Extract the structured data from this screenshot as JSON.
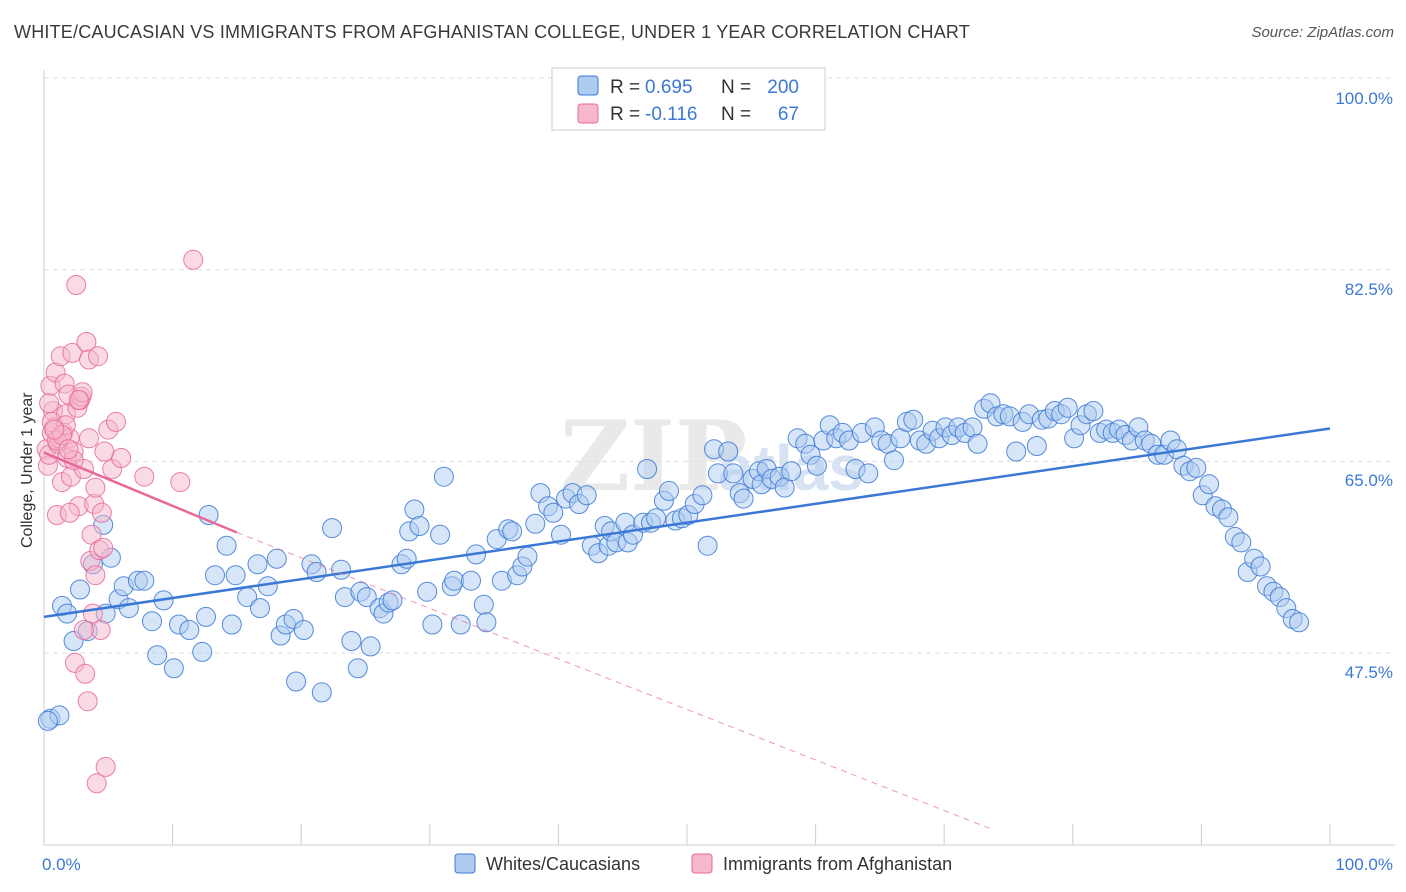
{
  "title": "WHITE/CAUCASIAN VS IMMIGRANTS FROM AFGHANISTAN COLLEGE, UNDER 1 YEAR CORRELATION CHART",
  "source": "Source: ZipAtlas.com",
  "watermark": {
    "part1": "ZIP",
    "part2": "atlas"
  },
  "colors": {
    "blue": "#3b78d6",
    "blue_fill": "#aecbf0",
    "pink": "#e8689a",
    "pink_fill": "#f6b8cc",
    "grid": "#dddddd"
  },
  "stats_legend": {
    "rows": [
      {
        "series": "Whites/Caucasians",
        "r_label": "R =",
        "r_value": "0.695",
        "n_label": "N =",
        "n_value": "200",
        "color": "#3b78d6"
      },
      {
        "series": "Immigrants from Afghanistan",
        "r_label": "R =",
        "r_value": "-0.116",
        "n_label": "N =",
        "n_value": "67",
        "color": "#e8689a"
      }
    ]
  },
  "chart_data": {
    "type": "scatter",
    "title": "WHITE/CAUCASIAN VS IMMIGRANTS FROM AFGHANISTAN COLLEGE, UNDER 1 YEAR CORRELATION CHART",
    "xlabel": "",
    "ylabel": "College, Under 1 year",
    "xlim": [
      0,
      100
    ],
    "ylim": [
      31.5,
      102
    ],
    "y_ticks": [
      47.5,
      65.0,
      82.5,
      100.0
    ],
    "y_tick_labels": [
      "47.5%",
      "65.0%",
      "82.5%",
      "100.0%"
    ],
    "x_tick_labels": [
      "0.0%",
      "100.0%"
    ],
    "grid": true,
    "legend": "bottom-center",
    "series": [
      {
        "name": "Whites/Caucasians",
        "color": "#3b78d6",
        "trend": {
          "x": [
            0,
            100
          ],
          "y": [
            50.8,
            68.0
          ],
          "style": "solid"
        },
        "points": [
          [
            0.5,
            41.5
          ],
          [
            1.2,
            41.8
          ],
          [
            1.4,
            51.8
          ],
          [
            1.8,
            51.1
          ],
          [
            2.3,
            48.6
          ],
          [
            2.8,
            53.3
          ],
          [
            3.4,
            49.5
          ],
          [
            3.8,
            55.6
          ],
          [
            4.6,
            59.2
          ],
          [
            4.8,
            51.1
          ],
          [
            5.2,
            56.2
          ],
          [
            5.8,
            52.4
          ],
          [
            6.2,
            53.6
          ],
          [
            6.6,
            51.6
          ],
          [
            7.3,
            54.1
          ],
          [
            7.8,
            54.1
          ],
          [
            8.4,
            50.4
          ],
          [
            8.8,
            47.3
          ],
          [
            9.3,
            52.3
          ],
          [
            10.1,
            46.1
          ],
          [
            10.5,
            50.1
          ],
          [
            11.3,
            49.6
          ],
          [
            12.3,
            47.6
          ],
          [
            12.6,
            50.8
          ],
          [
            12.8,
            60.1
          ],
          [
            13.3,
            54.6
          ],
          [
            14.2,
            57.3
          ],
          [
            14.6,
            50.1
          ],
          [
            14.9,
            54.6
          ],
          [
            15.8,
            52.6
          ],
          [
            16.6,
            55.6
          ],
          [
            16.8,
            51.6
          ],
          [
            17.4,
            53.6
          ],
          [
            18.1,
            56.1
          ],
          [
            18.4,
            49.1
          ],
          [
            18.8,
            50.1
          ],
          [
            19.4,
            50.6
          ],
          [
            19.6,
            44.9
          ],
          [
            20.2,
            49.6
          ],
          [
            20.8,
            55.6
          ],
          [
            21.2,
            54.9
          ],
          [
            21.6,
            43.9
          ],
          [
            22.4,
            58.9
          ],
          [
            23.1,
            55.1
          ],
          [
            23.4,
            52.6
          ],
          [
            23.9,
            48.6
          ],
          [
            24.4,
            46.1
          ],
          [
            24.6,
            53.1
          ],
          [
            25.1,
            52.6
          ],
          [
            25.4,
            48.1
          ],
          [
            26.1,
            51.6
          ],
          [
            26.4,
            51.1
          ],
          [
            26.8,
            52.1
          ],
          [
            27.1,
            52.3
          ],
          [
            27.8,
            55.6
          ],
          [
            28.2,
            56.1
          ],
          [
            28.4,
            58.6
          ],
          [
            28.8,
            60.6
          ],
          [
            29.2,
            59.1
          ],
          [
            29.8,
            53.1
          ],
          [
            30.2,
            50.1
          ],
          [
            30.8,
            58.3
          ],
          [
            31.1,
            63.6
          ],
          [
            31.7,
            53.6
          ],
          [
            31.9,
            54.1
          ],
          [
            32.4,
            50.1
          ],
          [
            33.2,
            54.1
          ],
          [
            33.6,
            56.5
          ],
          [
            34.2,
            51.9
          ],
          [
            34.4,
            50.3
          ],
          [
            35.2,
            57.9
          ],
          [
            35.6,
            54.1
          ],
          [
            36.1,
            58.8
          ],
          [
            36.4,
            58.6
          ],
          [
            36.8,
            54.6
          ],
          [
            37.2,
            55.4
          ],
          [
            37.6,
            56.3
          ],
          [
            38.2,
            59.3
          ],
          [
            38.6,
            62.1
          ],
          [
            39.2,
            60.9
          ],
          [
            39.6,
            60.3
          ],
          [
            40.2,
            58.3
          ],
          [
            40.6,
            61.6
          ],
          [
            41.1,
            62.1
          ],
          [
            41.6,
            61.1
          ],
          [
            42.2,
            61.9
          ],
          [
            42.6,
            57.3
          ],
          [
            43.1,
            56.6
          ],
          [
            43.6,
            59.1
          ],
          [
            43.9,
            57.3
          ],
          [
            44.1,
            58.6
          ],
          [
            44.5,
            57.6
          ],
          [
            45.2,
            59.4
          ],
          [
            45.4,
            57.6
          ],
          [
            45.8,
            58.3
          ],
          [
            46.6,
            59.4
          ],
          [
            46.9,
            64.3
          ],
          [
            47.2,
            59.4
          ],
          [
            47.6,
            59.8
          ],
          [
            48.2,
            61.4
          ],
          [
            48.6,
            62.3
          ],
          [
            49.1,
            59.6
          ],
          [
            49.6,
            59.8
          ],
          [
            50.1,
            60.1
          ],
          [
            50.6,
            61.1
          ],
          [
            51.2,
            61.9
          ],
          [
            51.6,
            57.3
          ],
          [
            52.1,
            66.1
          ],
          [
            52.4,
            63.9
          ],
          [
            53.2,
            65.9
          ],
          [
            53.6,
            63.9
          ],
          [
            54.1,
            62.1
          ],
          [
            54.4,
            61.6
          ],
          [
            55.1,
            63.4
          ],
          [
            55.6,
            64.1
          ],
          [
            55.8,
            62.9
          ],
          [
            56.2,
            64.3
          ],
          [
            56.6,
            63.4
          ],
          [
            57.2,
            63.6
          ],
          [
            57.6,
            62.6
          ],
          [
            58.1,
            64.1
          ],
          [
            58.6,
            67.1
          ],
          [
            59.2,
            66.6
          ],
          [
            59.6,
            65.6
          ],
          [
            60.1,
            64.6
          ],
          [
            60.6,
            66.9
          ],
          [
            61.1,
            68.3
          ],
          [
            61.6,
            67.1
          ],
          [
            62.1,
            67.6
          ],
          [
            62.6,
            66.9
          ],
          [
            63.1,
            64.3
          ],
          [
            63.6,
            67.6
          ],
          [
            64.1,
            63.9
          ],
          [
            64.6,
            68.1
          ],
          [
            65.1,
            66.9
          ],
          [
            65.6,
            66.6
          ],
          [
            66.1,
            65.1
          ],
          [
            66.6,
            67.1
          ],
          [
            67.1,
            68.6
          ],
          [
            67.6,
            68.8
          ],
          [
            68.1,
            66.9
          ],
          [
            68.6,
            66.6
          ],
          [
            69.1,
            67.8
          ],
          [
            69.6,
            67.1
          ],
          [
            70.1,
            68.1
          ],
          [
            70.6,
            67.4
          ],
          [
            71.1,
            68.1
          ],
          [
            71.6,
            67.6
          ],
          [
            72.2,
            68.1
          ],
          [
            72.6,
            66.6
          ],
          [
            73.1,
            69.8
          ],
          [
            73.6,
            70.3
          ],
          [
            74.1,
            69.1
          ],
          [
            74.6,
            69.3
          ],
          [
            75.1,
            69.1
          ],
          [
            75.6,
            65.9
          ],
          [
            76.1,
            68.6
          ],
          [
            76.6,
            69.3
          ],
          [
            77.2,
            66.4
          ],
          [
            77.6,
            68.8
          ],
          [
            78.1,
            68.9
          ],
          [
            78.6,
            69.6
          ],
          [
            79.1,
            69.3
          ],
          [
            79.6,
            69.9
          ],
          [
            80.1,
            67.1
          ],
          [
            80.6,
            68.3
          ],
          [
            81.1,
            69.3
          ],
          [
            81.6,
            69.6
          ],
          [
            82.1,
            67.6
          ],
          [
            82.6,
            67.9
          ],
          [
            83.1,
            67.6
          ],
          [
            83.6,
            67.9
          ],
          [
            84.1,
            67.4
          ],
          [
            84.6,
            66.9
          ],
          [
            85.1,
            68.1
          ],
          [
            85.6,
            66.9
          ],
          [
            86.1,
            66.6
          ],
          [
            86.6,
            65.6
          ],
          [
            87.1,
            65.6
          ],
          [
            87.6,
            66.9
          ],
          [
            88.1,
            66.1
          ],
          [
            88.6,
            64.6
          ],
          [
            89.1,
            64.1
          ],
          [
            89.6,
            64.4
          ],
          [
            90.1,
            61.9
          ],
          [
            90.6,
            62.9
          ],
          [
            91.1,
            60.9
          ],
          [
            91.6,
            60.6
          ],
          [
            92.1,
            59.9
          ],
          [
            92.6,
            58.1
          ],
          [
            93.1,
            57.6
          ],
          [
            93.6,
            54.9
          ],
          [
            94.1,
            56.1
          ],
          [
            94.6,
            55.4
          ],
          [
            95.1,
            53.6
          ],
          [
            95.6,
            53.1
          ],
          [
            96.1,
            52.6
          ],
          [
            96.6,
            51.6
          ],
          [
            97.1,
            50.6
          ],
          [
            97.6,
            50.3
          ],
          [
            0.3,
            41.3
          ]
        ]
      },
      {
        "name": "Immigrants from Afghanistan",
        "color": "#e8689a",
        "trend": {
          "x": [
            0,
            15
          ],
          "y": [
            65.8,
            58.5
          ],
          "style": "solid",
          "extension": {
            "x": [
              15,
              73.5
            ],
            "y": [
              58.5,
              31.5
            ],
            "style": "dashed"
          }
        },
        "points": [
          [
            0.2,
            66.1
          ],
          [
            0.3,
            64.6
          ],
          [
            0.4,
            65.6
          ],
          [
            0.5,
            71.9
          ],
          [
            0.6,
            67.6
          ],
          [
            0.7,
            69.6
          ],
          [
            0.8,
            68.1
          ],
          [
            0.9,
            73.1
          ],
          [
            1.0,
            60.1
          ],
          [
            1.1,
            66.6
          ],
          [
            1.2,
            67.1
          ],
          [
            1.3,
            74.6
          ],
          [
            1.4,
            63.1
          ],
          [
            1.5,
            67.6
          ],
          [
            1.6,
            72.1
          ],
          [
            1.7,
            69.3
          ],
          [
            1.8,
            65.3
          ],
          [
            1.9,
            71.1
          ],
          [
            2.0,
            67.1
          ],
          [
            2.1,
            63.6
          ],
          [
            2.2,
            74.9
          ],
          [
            2.3,
            65.9
          ],
          [
            2.4,
            46.6
          ],
          [
            2.5,
            81.1
          ],
          [
            2.6,
            69.9
          ],
          [
            2.7,
            60.9
          ],
          [
            2.8,
            70.6
          ],
          [
            2.9,
            70.9
          ],
          [
            3.0,
            71.3
          ],
          [
            3.1,
            64.3
          ],
          [
            3.2,
            45.6
          ],
          [
            3.3,
            75.9
          ],
          [
            3.4,
            43.1
          ],
          [
            3.5,
            74.3
          ],
          [
            3.6,
            55.9
          ],
          [
            3.7,
            58.3
          ],
          [
            3.8,
            51.1
          ],
          [
            3.9,
            61.1
          ],
          [
            4.0,
            54.6
          ],
          [
            4.1,
            35.6
          ],
          [
            4.2,
            74.6
          ],
          [
            4.3,
            56.9
          ],
          [
            4.4,
            49.6
          ],
          [
            4.5,
            60.3
          ],
          [
            4.6,
            57.1
          ],
          [
            4.7,
            65.9
          ],
          [
            4.8,
            37.1
          ],
          [
            5.0,
            67.9
          ],
          [
            5.3,
            64.3
          ],
          [
            5.6,
            68.6
          ],
          [
            6.0,
            65.3
          ],
          [
            7.8,
            63.6
          ],
          [
            10.6,
            63.1
          ],
          [
            11.6,
            83.4
          ],
          [
            0.6,
            68.6
          ],
          [
            1.0,
            66.9
          ],
          [
            1.7,
            68.3
          ],
          [
            2.0,
            60.3
          ],
          [
            2.3,
            65.1
          ],
          [
            2.7,
            70.6
          ],
          [
            3.1,
            49.6
          ],
          [
            3.5,
            67.1
          ],
          [
            4.0,
            62.6
          ],
          [
            1.4,
            67.4
          ],
          [
            0.8,
            67.9
          ],
          [
            1.9,
            66.1
          ],
          [
            0.4,
            70.3
          ]
        ]
      }
    ]
  },
  "axes": {
    "ylabel": "College, Under 1 year",
    "x_start_label": "0.0%",
    "x_end_label": "100.0%",
    "y_labels": [
      "100.0%",
      "82.5%",
      "65.0%",
      "47.5%"
    ]
  },
  "bottom_legend": {
    "items": [
      {
        "label": "Whites/Caucasians",
        "color": "#3b78d6"
      },
      {
        "label": "Immigrants from Afghanistan",
        "color": "#e8689a"
      }
    ]
  }
}
